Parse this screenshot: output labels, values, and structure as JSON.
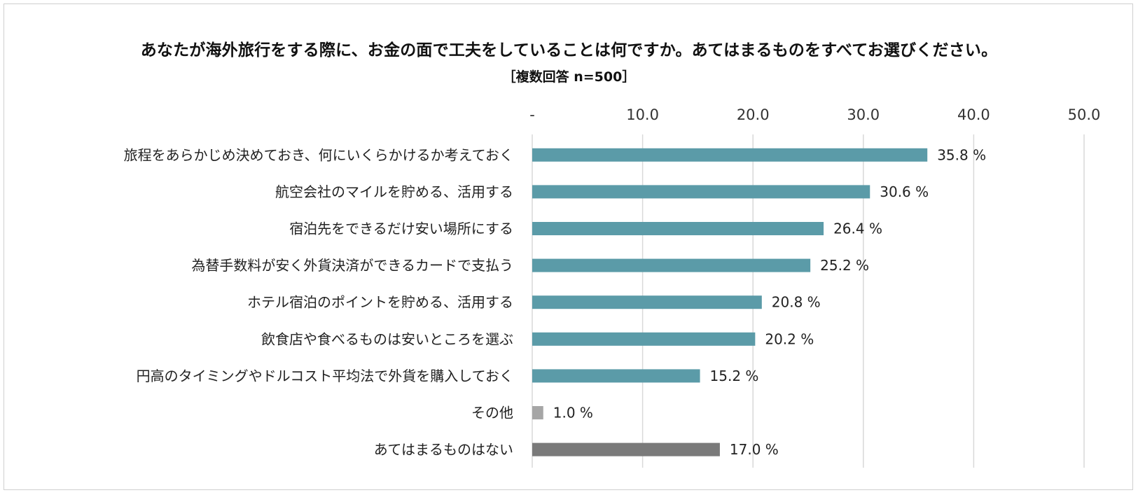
{
  "chart_data": {
    "type": "bar",
    "orientation": "horizontal",
    "title": "あなたが海外旅行をする際に、お金の面で工夫をしていることは何ですか。あてはまるものをすべてお選びください。",
    "subtitle": "［複数回答 n=500］",
    "xlim": [
      0,
      50
    ],
    "ticks": [
      0,
      10,
      20,
      30,
      40,
      50
    ],
    "tick_labels": [
      "-",
      "10.0",
      "20.0",
      "30.0",
      "40.0",
      "50.0"
    ],
    "axis_position": "top",
    "grid": true,
    "value_suffix": " %",
    "categories": [
      "旅程をあらかじめ決めておき、何にいくらかけるか考えておく",
      "航空会社のマイルを貯める、活用する",
      "宿泊先をできるだけ安い場所にする",
      "為替手数料が安く外貨決済ができるカードで支払う",
      "ホテル宿泊のポイントを貯める、活用する",
      "飲食店や食べるものは安いところを選ぶ",
      "円高のタイミングやドルコスト平均法で外貨を購入しておく",
      "その他",
      "あてはまるものはない"
    ],
    "values": [
      35.8,
      30.6,
      26.4,
      25.2,
      20.8,
      20.2,
      15.2,
      1.0,
      17.0
    ],
    "value_labels": [
      "35.8 %",
      "30.6 %",
      "26.4 %",
      "25.2 %",
      "20.8 %",
      "20.2 %",
      "15.2 %",
      "1.0 %",
      "17.0 %"
    ],
    "bar_colors": [
      "#5b9ba8",
      "#5b9ba8",
      "#5b9ba8",
      "#5b9ba8",
      "#5b9ba8",
      "#5b9ba8",
      "#5b9ba8",
      "#a6a6a6",
      "#7a7a7a"
    ],
    "grid_color": "#d9d9d9"
  }
}
